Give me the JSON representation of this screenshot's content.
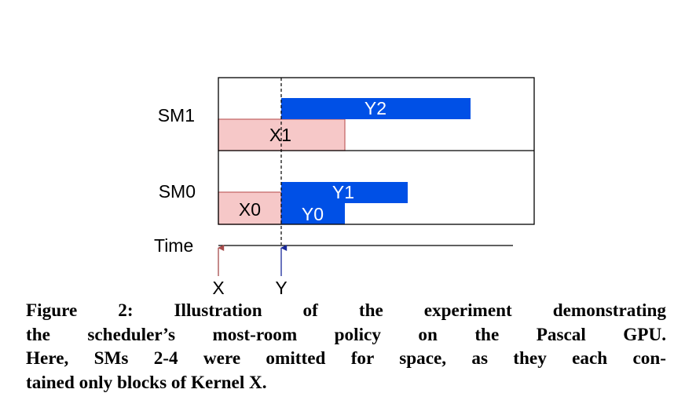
{
  "diagram": {
    "sm_labels": [
      "SM1",
      "SM0"
    ],
    "time_label": "Time",
    "markers": [
      {
        "label": "X",
        "color": "#a64b4b"
      },
      {
        "label": "Y",
        "color": "#1a2a9a"
      }
    ],
    "blocks": [
      {
        "label": "Y2",
        "kernel": "Y",
        "sm": "SM1"
      },
      {
        "label": "X1",
        "kernel": "X",
        "sm": "SM1"
      },
      {
        "label": "Y1",
        "kernel": "Y",
        "sm": "SM0"
      },
      {
        "label": "X0",
        "kernel": "X",
        "sm": "SM0"
      },
      {
        "label": "Y0",
        "kernel": "Y",
        "sm": "SM0"
      }
    ],
    "colors": {
      "kernel_x_fill": "#f6c8c8",
      "kernel_x_stroke": "#c06060",
      "kernel_y_fill": "#0050e6",
      "kernel_y_text": "#ffffff",
      "kernel_x_text": "#000000",
      "frame": "#000000"
    }
  },
  "caption": {
    "lines": [
      "Figure 2: Illustration of the experiment demonstrating",
      "the scheduler’s most-room policy on the Pascal GPU.",
      "Here, SMs 2-4 were omitted for space, as they each con-",
      "tained only blocks of Kernel X."
    ]
  }
}
